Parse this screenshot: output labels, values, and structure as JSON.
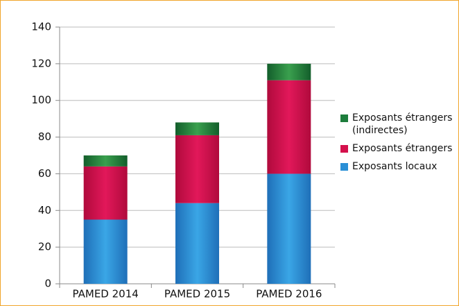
{
  "chart_data": {
    "type": "bar",
    "stacked": true,
    "categories": [
      "PAMED 2014",
      "PAMED 2015",
      "PAMED 2016"
    ],
    "series": [
      {
        "name": "Exposants locaux",
        "color": "#2a8fd6",
        "values": [
          35,
          44,
          60
        ]
      },
      {
        "name": "Exposants étrangers",
        "color": "#d4104c",
        "values": [
          29,
          37,
          51
        ]
      },
      {
        "name": "Exposants étrangers (indirectes)",
        "color": "#1d7d3c",
        "values": [
          6,
          7,
          9
        ]
      }
    ],
    "ylim": [
      0,
      140
    ],
    "yticks": [
      0,
      20,
      40,
      60,
      80,
      100,
      120,
      140
    ],
    "grid": true
  }
}
